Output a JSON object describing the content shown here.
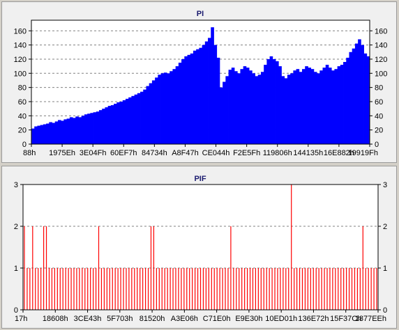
{
  "charts": [
    {
      "id": "pi",
      "title": "PI"
    },
    {
      "id": "pif",
      "title": "PIF"
    }
  ],
  "chart_data": [
    {
      "type": "bar",
      "title": "PI",
      "ylim": [
        0,
        175
      ],
      "yticks": [
        0,
        20,
        40,
        60,
        80,
        100,
        120,
        140,
        160
      ],
      "grid": true,
      "color": "#0000ff",
      "x_tick_labels": [
        "88h",
        "1975Eh",
        "3E04Fh",
        "60EF7h",
        "84734h",
        "A8F47h",
        "CE044h",
        "F2E5Fh",
        "119806h",
        "144135h",
        "16E882h",
        "19919Fh"
      ],
      "series": [
        {
          "values": [
            22,
            25,
            26,
            27,
            28,
            29,
            31,
            30,
            32,
            34,
            33,
            35,
            36,
            38,
            37,
            39,
            38,
            40,
            42,
            43,
            44,
            45,
            46,
            48,
            50,
            52,
            54,
            55,
            57,
            59,
            60,
            62,
            64,
            66,
            68,
            70,
            72,
            74,
            77,
            82,
            86,
            90,
            94,
            98,
            100,
            101,
            100,
            103,
            106,
            110,
            115,
            120,
            124,
            126,
            128,
            132,
            134,
            136,
            140,
            145,
            150,
            165,
            140,
            122,
            80,
            88,
            96,
            105,
            108,
            103,
            100,
            106,
            110,
            108,
            104,
            100,
            96,
            98,
            102,
            112,
            120,
            124,
            120,
            117,
            110,
            96,
            93,
            98,
            100,
            104,
            106,
            102,
            106,
            110,
            108,
            106,
            102,
            100,
            104,
            108,
            112,
            108,
            104,
            106,
            110,
            112,
            116,
            122,
            130,
            135,
            142,
            148,
            140,
            128,
            124
          ]
        }
      ]
    },
    {
      "type": "bar",
      "title": "PIF",
      "ylim": [
        0,
        3
      ],
      "yticks": [
        0,
        1,
        2,
        3
      ],
      "grid": true,
      "color": "#ff0000",
      "x_tick_labels": [
        "17h",
        "18608h",
        "3CE43h",
        "5F703h",
        "81520h",
        "A3E06h",
        "C71E0h",
        "E9E30h",
        "10ED01h",
        "136E72h",
        "15F37Ch",
        "1877EEh"
      ],
      "series": [
        {
          "values": [
            2,
            1,
            1,
            2,
            1,
            1,
            1,
            2,
            2,
            1,
            1,
            1,
            1,
            1,
            1,
            1,
            1,
            1,
            1,
            1,
            1,
            1,
            1,
            1,
            1,
            1,
            1,
            2,
            1,
            1,
            1,
            1,
            1,
            1,
            1,
            1,
            1,
            1,
            1,
            1,
            1,
            1,
            1,
            1,
            1,
            1,
            2,
            2,
            1,
            1,
            1,
            1,
            1,
            1,
            1,
            1,
            1,
            1,
            1,
            1,
            1,
            1,
            1,
            1,
            1,
            1,
            1,
            1,
            1,
            1,
            1,
            1,
            1,
            1,
            1,
            2,
            1,
            1,
            1,
            1,
            1,
            1,
            1,
            1,
            1,
            1,
            1,
            1,
            1,
            1,
            1,
            1,
            1,
            1,
            1,
            1,
            1,
            3,
            1,
            1,
            1,
            1,
            1,
            1,
            1,
            1,
            1,
            1,
            1,
            1,
            1,
            1,
            1,
            1,
            1,
            1,
            1,
            1,
            1,
            1,
            1,
            1,
            1,
            2,
            1,
            1,
            1,
            1,
            1
          ]
        }
      ]
    }
  ]
}
